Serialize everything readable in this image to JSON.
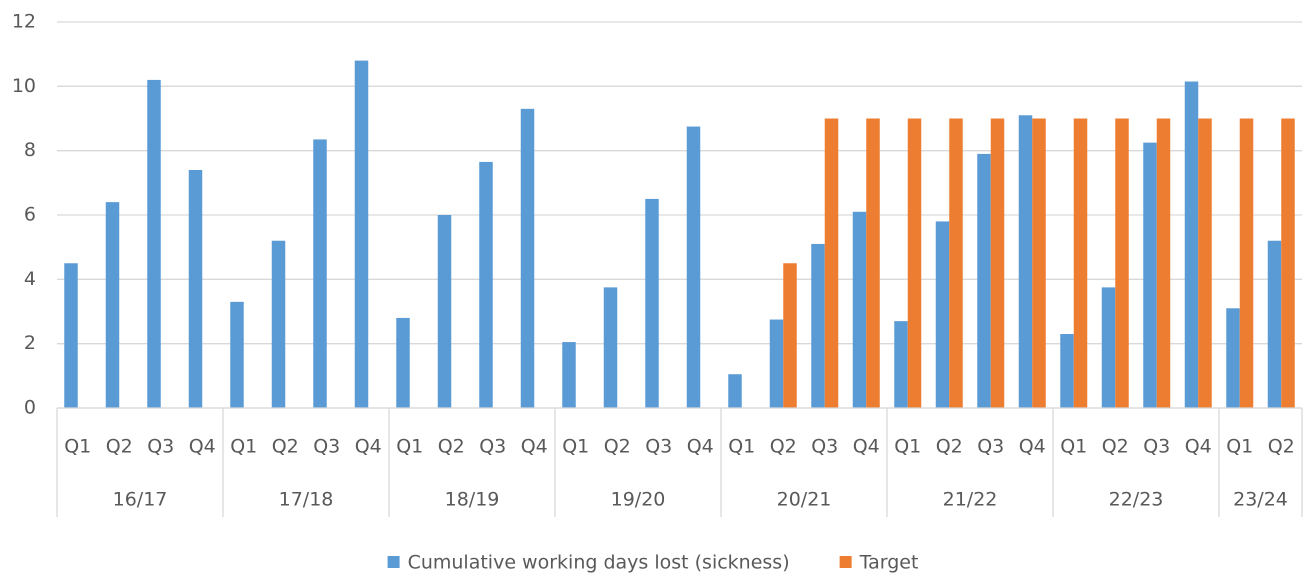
{
  "chart_data": {
    "type": "bar",
    "groups": [
      {
        "label": "16/17",
        "categories": [
          "Q1",
          "Q2",
          "Q3",
          "Q4"
        ]
      },
      {
        "label": "17/18",
        "categories": [
          "Q1",
          "Q2",
          "Q3",
          "Q4"
        ]
      },
      {
        "label": "18/19",
        "categories": [
          "Q1",
          "Q2",
          "Q3",
          "Q4"
        ]
      },
      {
        "label": "19/20",
        "categories": [
          "Q1",
          "Q2",
          "Q3",
          "Q4"
        ]
      },
      {
        "label": "20/21",
        "categories": [
          "Q1",
          "Q2",
          "Q3",
          "Q4"
        ]
      },
      {
        "label": "21/22",
        "categories": [
          "Q1",
          "Q2",
          "Q3",
          "Q4"
        ]
      },
      {
        "label": "22/23",
        "categories": [
          "Q1",
          "Q2",
          "Q3",
          "Q4"
        ]
      },
      {
        "label": "23/24",
        "categories": [
          "Q1",
          "Q2"
        ]
      }
    ],
    "series": [
      {
        "name": "Cumulative working days lost (sickness)",
        "color": "#5b9bd5",
        "values": [
          4.5,
          6.4,
          10.2,
          7.4,
          3.3,
          5.2,
          8.35,
          10.8,
          2.8,
          6.0,
          7.65,
          9.3,
          2.05,
          3.75,
          6.5,
          8.75,
          1.05,
          2.75,
          5.1,
          6.1,
          2.7,
          5.8,
          7.9,
          9.1,
          2.3,
          3.75,
          8.25,
          10.15,
          3.1,
          5.2
        ]
      },
      {
        "name": "Target",
        "color": "#ed7d31",
        "values": [
          null,
          null,
          null,
          null,
          null,
          null,
          null,
          null,
          null,
          null,
          null,
          null,
          null,
          null,
          null,
          null,
          null,
          4.5,
          9,
          9,
          9,
          9,
          9,
          9,
          9,
          9,
          9,
          9,
          9,
          9
        ]
      }
    ],
    "ylim": [
      0,
      12
    ],
    "yticks": [
      0,
      2,
      4,
      6,
      8,
      10,
      12
    ],
    "grid": true,
    "legend": "bottom"
  }
}
